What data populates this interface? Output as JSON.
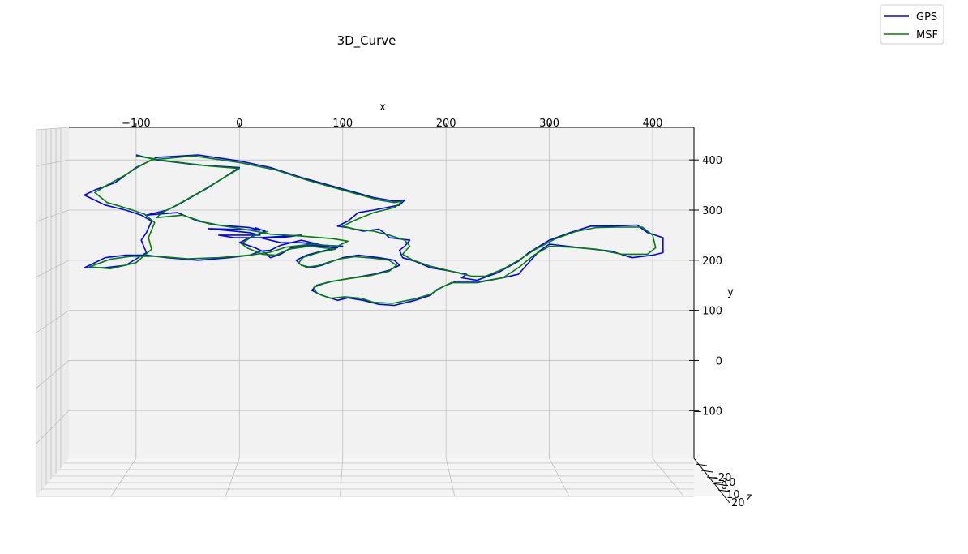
{
  "chart_data": {
    "type": "line",
    "title": "3D_Curve",
    "projection": "3d",
    "xlabel": "x",
    "ylabel": "y",
    "zlabel": "z",
    "x_ticks": [
      -100,
      0,
      100,
      200,
      300,
      400
    ],
    "x_tick_labels": [
      "−100",
      "0",
      "100",
      "200",
      "300",
      "400"
    ],
    "y_ticks": [
      400,
      300,
      200,
      100,
      0,
      -100
    ],
    "y_tick_labels": [
      "400",
      "300",
      "200",
      "100",
      "0",
      "−100"
    ],
    "z_tick_labels": [
      "−20",
      "−10",
      "0",
      "10",
      "20"
    ],
    "xlim": [
      -165,
      440
    ],
    "ylim": [
      -195,
      465
    ],
    "grid": true,
    "legend_placement": "top-right",
    "series": [
      {
        "name": "GPS",
        "color": "#0000ff",
        "points": [
          [
            -100,
            410
          ],
          [
            -80,
            400
          ],
          [
            -40,
            390
          ],
          [
            0,
            385
          ],
          [
            -30,
            345
          ],
          [
            -60,
            310
          ],
          [
            -70,
            300
          ],
          [
            -90,
            290
          ],
          [
            -60,
            295
          ],
          [
            -40,
            278
          ],
          [
            -20,
            270
          ],
          [
            10,
            265
          ],
          [
            20,
            260
          ],
          [
            -10,
            262
          ],
          [
            -30,
            263
          ],
          [
            10,
            255
          ],
          [
            20,
            250
          ],
          [
            0,
            250
          ],
          [
            -20,
            250
          ],
          [
            -5,
            245
          ],
          [
            40,
            245
          ],
          [
            60,
            250
          ],
          [
            20,
            245
          ],
          [
            40,
            235
          ],
          [
            60,
            235
          ],
          [
            80,
            230
          ],
          [
            100,
            228
          ],
          [
            90,
            225
          ],
          [
            60,
            240
          ],
          [
            40,
            230
          ],
          [
            30,
            220
          ],
          [
            20,
            218
          ],
          [
            10,
            210
          ],
          [
            -10,
            205
          ],
          [
            -40,
            200
          ],
          [
            -70,
            205
          ],
          [
            -90,
            210
          ],
          [
            -110,
            210
          ],
          [
            -130,
            205
          ],
          [
            -150,
            185
          ],
          [
            -130,
            185
          ],
          [
            -110,
            190
          ],
          [
            -90,
            215
          ],
          [
            -95,
            240
          ],
          [
            -90,
            255
          ],
          [
            -85,
            278
          ],
          [
            -95,
            290
          ],
          [
            -110,
            300
          ],
          [
            -130,
            310
          ],
          [
            -150,
            330
          ],
          [
            -140,
            340
          ],
          [
            -120,
            355
          ],
          [
            -110,
            370
          ],
          [
            -100,
            385
          ],
          [
            -90,
            395
          ],
          [
            -80,
            405
          ],
          [
            -40,
            410
          ],
          [
            0,
            398
          ],
          [
            30,
            385
          ],
          [
            60,
            365
          ],
          [
            95,
            345
          ],
          [
            130,
            325
          ],
          [
            150,
            318
          ],
          [
            160,
            320
          ],
          [
            155,
            310
          ],
          [
            130,
            300
          ],
          [
            115,
            295
          ],
          [
            105,
            278
          ],
          [
            95,
            268
          ],
          [
            105,
            265
          ],
          [
            120,
            258
          ],
          [
            135,
            262
          ],
          [
            140,
            255
          ],
          [
            145,
            245
          ],
          [
            165,
            240
          ],
          [
            160,
            228
          ],
          [
            155,
            220
          ],
          [
            158,
            205
          ],
          [
            170,
            198
          ],
          [
            185,
            185
          ],
          [
            200,
            180
          ],
          [
            220,
            172
          ],
          [
            215,
            165
          ],
          [
            230,
            160
          ],
          [
            250,
            175
          ],
          [
            270,
            198
          ],
          [
            280,
            215
          ],
          [
            300,
            240
          ],
          [
            320,
            255
          ],
          [
            340,
            268
          ],
          [
            360,
            268
          ],
          [
            385,
            270
          ],
          [
            395,
            255
          ],
          [
            410,
            245
          ],
          [
            410,
            215
          ],
          [
            400,
            210
          ],
          [
            380,
            205
          ],
          [
            360,
            218
          ],
          [
            330,
            225
          ],
          [
            300,
            232
          ],
          [
            290,
            218
          ],
          [
            280,
            195
          ],
          [
            270,
            172
          ],
          [
            255,
            165
          ],
          [
            235,
            158
          ],
          [
            210,
            158
          ],
          [
            200,
            150
          ],
          [
            190,
            140
          ],
          [
            185,
            130
          ],
          [
            170,
            120
          ],
          [
            150,
            110
          ],
          [
            135,
            112
          ],
          [
            120,
            120
          ],
          [
            105,
            125
          ],
          [
            95,
            120
          ],
          [
            80,
            130
          ],
          [
            70,
            140
          ],
          [
            75,
            150
          ],
          [
            90,
            158
          ],
          [
            110,
            165
          ],
          [
            130,
            172
          ],
          [
            145,
            180
          ],
          [
            155,
            190
          ],
          [
            150,
            200
          ],
          [
            135,
            205
          ],
          [
            115,
            210
          ],
          [
            100,
            205
          ],
          [
            90,
            198
          ],
          [
            80,
            190
          ],
          [
            70,
            185
          ],
          [
            60,
            190
          ],
          [
            55,
            200
          ],
          [
            65,
            210
          ],
          [
            80,
            218
          ],
          [
            95,
            225
          ],
          [
            70,
            230
          ],
          [
            50,
            225
          ],
          [
            40,
            212
          ],
          [
            30,
            205
          ],
          [
            25,
            215
          ],
          [
            15,
            225
          ],
          [
            5,
            232
          ],
          [
            0,
            235
          ],
          [
            10,
            245
          ],
          [
            25,
            258
          ],
          [
            15,
            265
          ]
        ]
      },
      {
        "name": "MSF",
        "color": "#008000",
        "points": [
          [
            -100,
            408
          ],
          [
            -70,
            398
          ],
          [
            -30,
            388
          ],
          [
            0,
            383
          ],
          [
            -35,
            340
          ],
          [
            -65,
            305
          ],
          [
            -75,
            295
          ],
          [
            -80,
            285
          ],
          [
            -55,
            290
          ],
          [
            -30,
            273
          ],
          [
            -5,
            265
          ],
          [
            15,
            258
          ],
          [
            30,
            252
          ],
          [
            60,
            248
          ],
          [
            90,
            243
          ],
          [
            105,
            238
          ],
          [
            95,
            228
          ],
          [
            70,
            232
          ],
          [
            45,
            226
          ],
          [
            30,
            216
          ],
          [
            10,
            210
          ],
          [
            -20,
            205
          ],
          [
            -50,
            203
          ],
          [
            -80,
            208
          ],
          [
            -105,
            208
          ],
          [
            -125,
            202
          ],
          [
            -145,
            187
          ],
          [
            -125,
            183
          ],
          [
            -100,
            195
          ],
          [
            -85,
            222
          ],
          [
            -88,
            245
          ],
          [
            -82,
            275
          ],
          [
            -92,
            292
          ],
          [
            -108,
            303
          ],
          [
            -128,
            315
          ],
          [
            -140,
            335
          ],
          [
            -128,
            350
          ],
          [
            -112,
            368
          ],
          [
            -98,
            386
          ],
          [
            -85,
            400
          ],
          [
            -45,
            408
          ],
          [
            0,
            395
          ],
          [
            35,
            380
          ],
          [
            65,
            360
          ],
          [
            100,
            340
          ],
          [
            135,
            320
          ],
          [
            150,
            315
          ],
          [
            158,
            318
          ],
          [
            150,
            305
          ],
          [
            130,
            295
          ],
          [
            112,
            280
          ],
          [
            100,
            268
          ],
          [
            112,
            262
          ],
          [
            130,
            258
          ],
          [
            145,
            250
          ],
          [
            160,
            240
          ],
          [
            165,
            228
          ],
          [
            158,
            212
          ],
          [
            168,
            200
          ],
          [
            185,
            188
          ],
          [
            205,
            178
          ],
          [
            225,
            168
          ],
          [
            238,
            168
          ],
          [
            255,
            182
          ],
          [
            272,
            202
          ],
          [
            285,
            220
          ],
          [
            305,
            242
          ],
          [
            325,
            257
          ],
          [
            345,
            265
          ],
          [
            365,
            266
          ],
          [
            390,
            266
          ],
          [
            400,
            250
          ],
          [
            403,
            225
          ],
          [
            395,
            212
          ],
          [
            370,
            212
          ],
          [
            345,
            222
          ],
          [
            320,
            226
          ],
          [
            300,
            228
          ],
          [
            285,
            210
          ],
          [
            270,
            185
          ],
          [
            255,
            165
          ],
          [
            230,
            155
          ],
          [
            205,
            155
          ],
          [
            195,
            145
          ],
          [
            185,
            132
          ],
          [
            168,
            122
          ],
          [
            148,
            114
          ],
          [
            130,
            116
          ],
          [
            118,
            124
          ],
          [
            102,
            127
          ],
          [
            88,
            124
          ],
          [
            75,
            134
          ],
          [
            72,
            146
          ],
          [
            85,
            156
          ],
          [
            105,
            163
          ],
          [
            128,
            170
          ],
          [
            145,
            178
          ],
          [
            152,
            190
          ],
          [
            145,
            200
          ],
          [
            130,
            204
          ],
          [
            112,
            207
          ],
          [
            98,
            203
          ],
          [
            86,
            196
          ],
          [
            76,
            189
          ],
          [
            65,
            186
          ],
          [
            57,
            194
          ],
          [
            62,
            206
          ],
          [
            78,
            216
          ],
          [
            93,
            222
          ],
          [
            68,
            228
          ],
          [
            48,
            222
          ],
          [
            35,
            210
          ],
          [
            22,
            212
          ],
          [
            8,
            224
          ],
          [
            2,
            233
          ],
          [
            12,
            247
          ],
          [
            28,
            258
          ]
        ]
      }
    ]
  }
}
